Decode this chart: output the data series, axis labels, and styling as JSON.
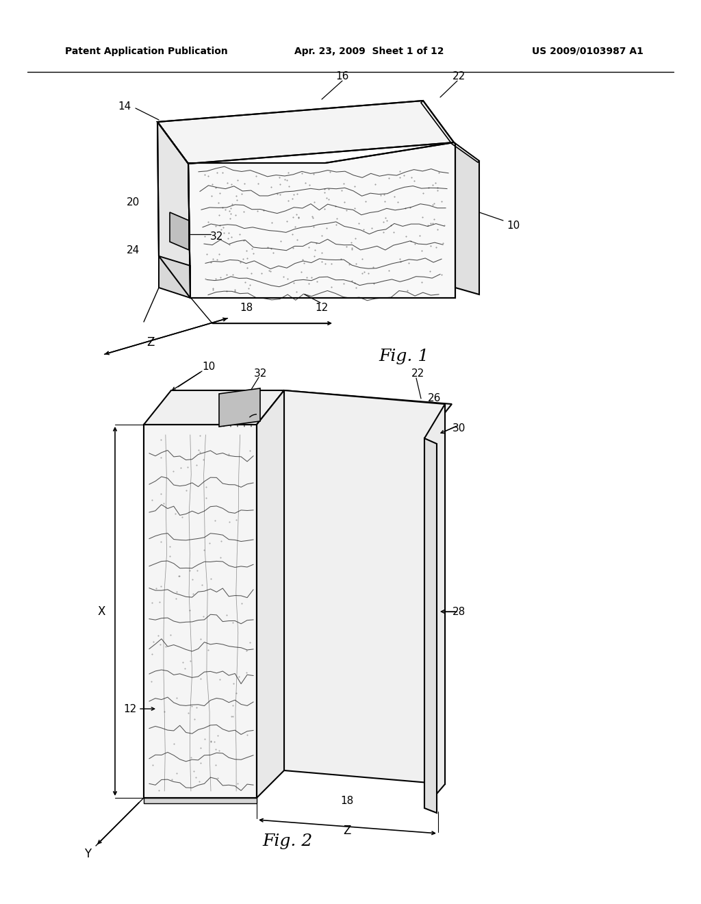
{
  "background_color": "#ffffff",
  "line_color": "#000000",
  "text_color": "#000000",
  "header_left": "Patent Application Publication",
  "header_center": "Apr. 23, 2009  Sheet 1 of 12",
  "header_right": "US 2009/0103987 A1",
  "fig1_label": "Fig. 1",
  "fig2_label": "Fig. 2"
}
